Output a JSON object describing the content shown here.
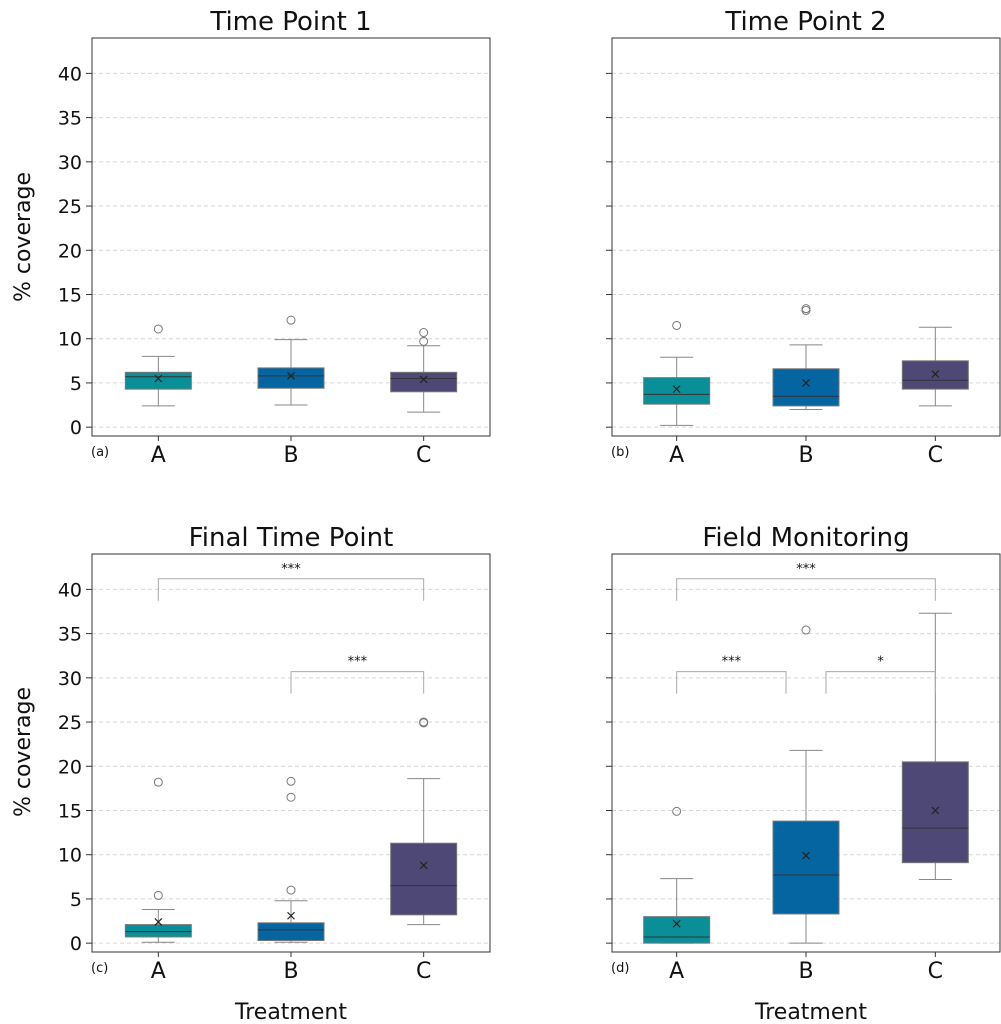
{
  "figure": {
    "y_label": "% coverage",
    "x_label": "Treatment"
  },
  "chart_data": [
    {
      "type": "box",
      "title": "Time Point 1",
      "panel_label": "(a)",
      "categories": [
        "A",
        "B",
        "C"
      ],
      "ylim": [
        -1,
        44
      ],
      "yticks": [
        0,
        5,
        10,
        15,
        20,
        25,
        30,
        35,
        40
      ],
      "grid": true,
      "colors": [
        "#0a8f98",
        "#0565a0",
        "#4d4876"
      ],
      "boxes": [
        {
          "category": "A",
          "min": 2.4,
          "q1": 4.3,
          "median": 5.7,
          "q3": 6.2,
          "max": 8.0,
          "mean": 5.5,
          "outliers": [
            11.1
          ]
        },
        {
          "category": "B",
          "min": 2.5,
          "q1": 4.4,
          "median": 5.8,
          "q3": 6.7,
          "max": 9.9,
          "mean": 5.8,
          "outliers": [
            12.1
          ]
        },
        {
          "category": "C",
          "min": 1.7,
          "q1": 4.0,
          "median": 5.5,
          "q3": 6.2,
          "max": 9.2,
          "mean": 5.4,
          "outliers": [
            9.7,
            10.7
          ]
        }
      ],
      "significance": []
    },
    {
      "type": "box",
      "title": "Time Point 2",
      "panel_label": "(b)",
      "categories": [
        "A",
        "B",
        "C"
      ],
      "ylim": [
        -1,
        44
      ],
      "yticks": [
        0,
        5,
        10,
        15,
        20,
        25,
        30,
        35,
        40
      ],
      "grid": true,
      "colors": [
        "#0a8f98",
        "#0565a0",
        "#4d4876"
      ],
      "boxes": [
        {
          "category": "A",
          "min": 0.2,
          "q1": 2.6,
          "median": 3.7,
          "q3": 5.6,
          "max": 7.9,
          "mean": 4.3,
          "outliers": [
            11.5
          ]
        },
        {
          "category": "B",
          "min": 2.0,
          "q1": 2.4,
          "median": 3.5,
          "q3": 6.6,
          "max": 9.3,
          "mean": 5.0,
          "outliers": [
            13.2,
            13.4
          ]
        },
        {
          "category": "C",
          "min": 2.4,
          "q1": 4.3,
          "median": 5.3,
          "q3": 7.5,
          "max": 11.3,
          "mean": 6.0,
          "outliers": []
        }
      ],
      "significance": []
    },
    {
      "type": "box",
      "title": "Final Time Point",
      "panel_label": "(c)",
      "categories": [
        "A",
        "B",
        "C"
      ],
      "ylim": [
        -1,
        44
      ],
      "yticks": [
        0,
        5,
        10,
        15,
        20,
        25,
        30,
        35,
        40
      ],
      "grid": true,
      "colors": [
        "#0a8f98",
        "#0565a0",
        "#4d4876"
      ],
      "boxes": [
        {
          "category": "A",
          "min": 0.1,
          "q1": 0.7,
          "median": 1.3,
          "q3": 2.1,
          "max": 3.8,
          "mean": 2.4,
          "outliers": [
            5.4,
            18.2
          ]
        },
        {
          "category": "B",
          "min": 0.1,
          "q1": 0.3,
          "median": 1.5,
          "q3": 2.3,
          "max": 4.8,
          "mean": 3.1,
          "outliers": [
            6.0,
            16.5,
            18.3
          ]
        },
        {
          "category": "C",
          "min": 2.1,
          "q1": 3.2,
          "median": 6.5,
          "q3": 11.3,
          "max": 18.6,
          "mean": 8.8,
          "outliers": [
            24.9,
            25.0
          ]
        }
      ],
      "significance": [
        {
          "from": "A",
          "to": "C",
          "label": "***",
          "y": 41.2
        },
        {
          "from": "B",
          "to": "C",
          "label": "***",
          "y": 30.7
        }
      ]
    },
    {
      "type": "box",
      "title": "Field Monitoring",
      "panel_label": "(d)",
      "categories": [
        "A",
        "B",
        "C"
      ],
      "ylim": [
        -1,
        44
      ],
      "yticks": [
        0,
        5,
        10,
        15,
        20,
        25,
        30,
        35,
        40
      ],
      "grid": true,
      "colors": [
        "#0a8f98",
        "#0565a0",
        "#4d4876"
      ],
      "boxes": [
        {
          "category": "A",
          "min": 0.0,
          "q1": 0.0,
          "median": 0.7,
          "q3": 3.0,
          "max": 7.3,
          "mean": 2.2,
          "outliers": [
            14.9
          ]
        },
        {
          "category": "B",
          "min": 0.0,
          "q1": 3.3,
          "median": 7.7,
          "q3": 13.8,
          "max": 21.8,
          "mean": 9.9,
          "outliers": [
            35.4
          ]
        },
        {
          "category": "C",
          "min": 7.2,
          "q1": 9.1,
          "median": 13.0,
          "q3": 20.5,
          "max": 37.3,
          "mean": 15.0,
          "outliers": []
        }
      ],
      "significance": [
        {
          "from": "A",
          "to": "C",
          "label": "***",
          "y": 41.2
        },
        {
          "from": "A",
          "to": "B",
          "label": "***",
          "y": 30.7
        },
        {
          "from": "B",
          "to": "C",
          "label": "*",
          "y": 30.7
        }
      ]
    }
  ]
}
